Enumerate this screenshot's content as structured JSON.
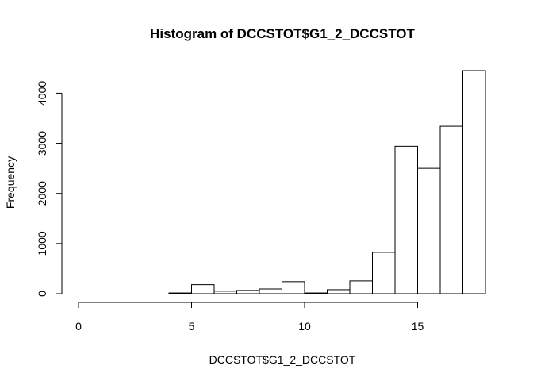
{
  "chart_data": {
    "type": "bar",
    "title": "Histogram of DCCSTOT$G1_2_DCCSTOT",
    "xlabel": "DCCSTOT$G1_2_DCCSTOT",
    "ylabel": "Frequency",
    "xlim": [
      0,
      18
    ],
    "ylim": [
      0,
      4450
    ],
    "x_ticks": [
      0,
      5,
      10,
      15
    ],
    "y_ticks": [
      0,
      1000,
      2000,
      3000,
      4000
    ],
    "bins": [
      {
        "start": 0,
        "end": 1,
        "value": 0
      },
      {
        "start": 1,
        "end": 2,
        "value": 0
      },
      {
        "start": 2,
        "end": 3,
        "value": 0
      },
      {
        "start": 3,
        "end": 4,
        "value": 0
      },
      {
        "start": 4,
        "end": 5,
        "value": 15
      },
      {
        "start": 5,
        "end": 6,
        "value": 180
      },
      {
        "start": 6,
        "end": 7,
        "value": 50
      },
      {
        "start": 7,
        "end": 8,
        "value": 65
      },
      {
        "start": 8,
        "end": 9,
        "value": 95
      },
      {
        "start": 9,
        "end": 10,
        "value": 240
      },
      {
        "start": 10,
        "end": 11,
        "value": 15
      },
      {
        "start": 11,
        "end": 12,
        "value": 80
      },
      {
        "start": 12,
        "end": 13,
        "value": 255
      },
      {
        "start": 13,
        "end": 14,
        "value": 825
      },
      {
        "start": 14,
        "end": 15,
        "value": 2940
      },
      {
        "start": 15,
        "end": 16,
        "value": 2500
      },
      {
        "start": 16,
        "end": 17,
        "value": 3340
      },
      {
        "start": 17,
        "end": 18,
        "value": 4450
      }
    ],
    "grid": false,
    "legend": "none"
  }
}
